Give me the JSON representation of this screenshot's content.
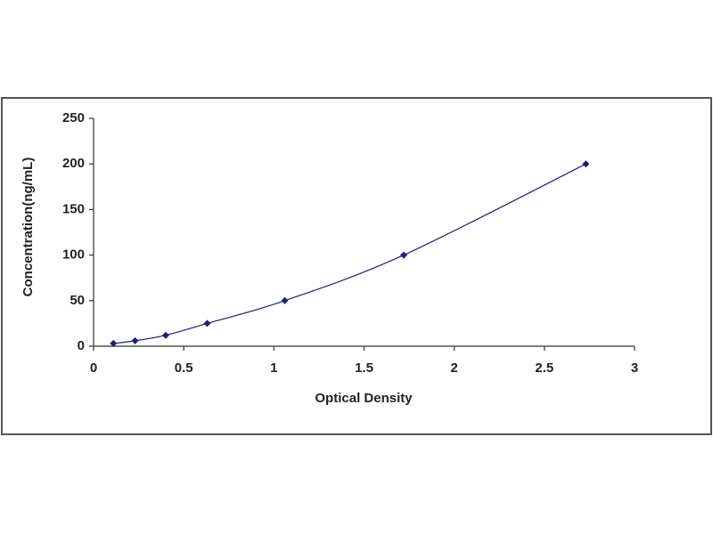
{
  "chart_data": {
    "type": "scatter",
    "x_label": "Optical Density",
    "y_label": "Concentration(ng/mL)",
    "series": [
      {
        "color": "#1f1f78",
        "x": [
          0.11,
          0.23,
          0.4,
          0.63,
          1.06,
          1.72,
          2.73
        ],
        "values": [
          3,
          6,
          12,
          25,
          50,
          100,
          200
        ]
      }
    ],
    "trendline": true,
    "xlim": [
      0,
      3
    ],
    "xticks": [
      0,
      0.5,
      1,
      1.5,
      2,
      2.5,
      3
    ],
    "ylim": [
      0,
      250
    ],
    "yticks": [
      0,
      50,
      100,
      150,
      200,
      250
    ],
    "grid": false
  }
}
